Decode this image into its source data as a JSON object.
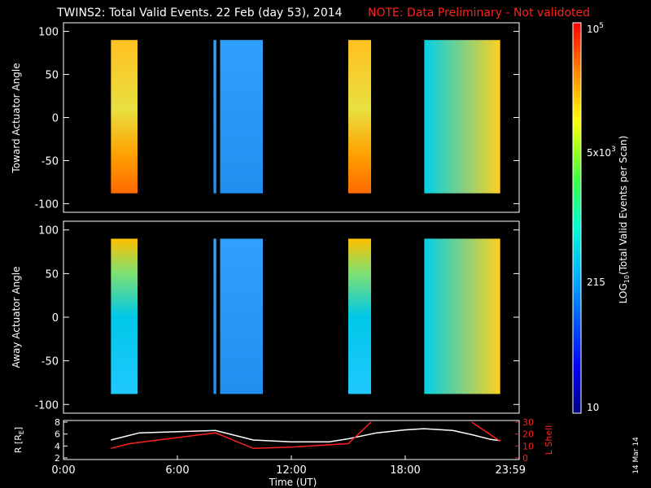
{
  "header": {
    "title": "TWINS2: Total Valid Events. 22 Feb (day  53), 2014",
    "note": "NOTE: Data Preliminary - Not validoted",
    "note_color": "#ff2020"
  },
  "side_date": "14 Mar 14",
  "chart_data": [
    {
      "type": "heatmap",
      "ylabel": "Toward Actuator Angle",
      "ylim": [
        -110,
        110
      ],
      "yticks": [
        100,
        50,
        0,
        -50,
        -100
      ],
      "xlim": [
        0,
        24
      ],
      "blocks": [
        {
          "x0": 2.5,
          "x1": 3.9,
          "y0": -88,
          "y1": 90,
          "style": "warm-orange-bottom"
        },
        {
          "x0": 7.9,
          "x1": 8.05,
          "y0": -88,
          "y1": 90,
          "style": "blue"
        },
        {
          "x0": 8.25,
          "x1": 10.5,
          "y0": -88,
          "y1": 90,
          "style": "blue"
        },
        {
          "x0": 15.0,
          "x1": 16.2,
          "y0": -88,
          "y1": 90,
          "style": "warm-orange-bottom"
        },
        {
          "x0": 19.0,
          "x1": 23.0,
          "y0": -88,
          "y1": 90,
          "style": "cyan-to-yellow"
        }
      ]
    },
    {
      "type": "heatmap",
      "ylabel": "Away Actuator Angle",
      "ylim": [
        -110,
        110
      ],
      "yticks": [
        100,
        50,
        0,
        -50,
        -100
      ],
      "xlim": [
        0,
        24
      ],
      "blocks": [
        {
          "x0": 2.5,
          "x1": 3.9,
          "y0": -88,
          "y1": 90,
          "style": "yellow-top-cyan"
        },
        {
          "x0": 7.9,
          "x1": 8.05,
          "y0": -88,
          "y1": 90,
          "style": "blue"
        },
        {
          "x0": 8.25,
          "x1": 10.5,
          "y0": -88,
          "y1": 90,
          "style": "blue"
        },
        {
          "x0": 15.0,
          "x1": 16.2,
          "y0": -88,
          "y1": 90,
          "style": "yellow-top-cyan"
        },
        {
          "x0": 19.0,
          "x1": 23.0,
          "y0": -88,
          "y1": 90,
          "style": "cyan-to-yellow"
        }
      ]
    },
    {
      "type": "line",
      "xlabel": "Time (UT)",
      "xticks": [
        "0:00",
        "6:00",
        "12:00",
        "18:00",
        "23:59"
      ],
      "ylabel_left": "R [R",
      "ylabel_left_sub": "E",
      "ylabel_left_close": "]",
      "ylim_left": [
        2,
        8
      ],
      "yticks_left": [
        8,
        6,
        4,
        2
      ],
      "ylabel_right": "L Shell",
      "ylim_right": [
        0,
        30
      ],
      "yticks_right": [
        30,
        20,
        10,
        0
      ],
      "series": [
        {
          "color": "#ffffff",
          "axis": "left",
          "x": [
            2.5,
            4.0,
            6.0,
            8.0,
            10.0,
            12.0,
            14.0,
            15.0,
            16.5,
            18.0,
            19.0,
            20.5,
            21.5,
            22.5,
            23.0
          ],
          "y": [
            5.0,
            6.2,
            6.4,
            6.6,
            5.0,
            4.7,
            4.7,
            5.2,
            6.2,
            6.7,
            6.9,
            6.6,
            5.9,
            5.1,
            4.9
          ]
        },
        {
          "color": "#ff2020",
          "axis": "right",
          "x": [
            2.5,
            3.5,
            8.0,
            10.0,
            12.0,
            15.0,
            16.2
          ],
          "y": [
            8,
            12,
            21,
            8,
            9,
            12,
            30
          ]
        },
        {
          "color": "#ff2020",
          "axis": "right",
          "x": [
            21.5,
            23.0
          ],
          "y": [
            30,
            14
          ]
        }
      ]
    }
  ],
  "colorbar": {
    "label_main": "LOG",
    "label_sub": "10",
    "label_rest": "(Total Valid Events per Scan)",
    "tick_top": "10",
    "tick_top_sup": "5",
    "tick_mid1": "5x10",
    "tick_mid1_sup": "3",
    "tick_mid2": "215",
    "tick_bottom": "10"
  }
}
